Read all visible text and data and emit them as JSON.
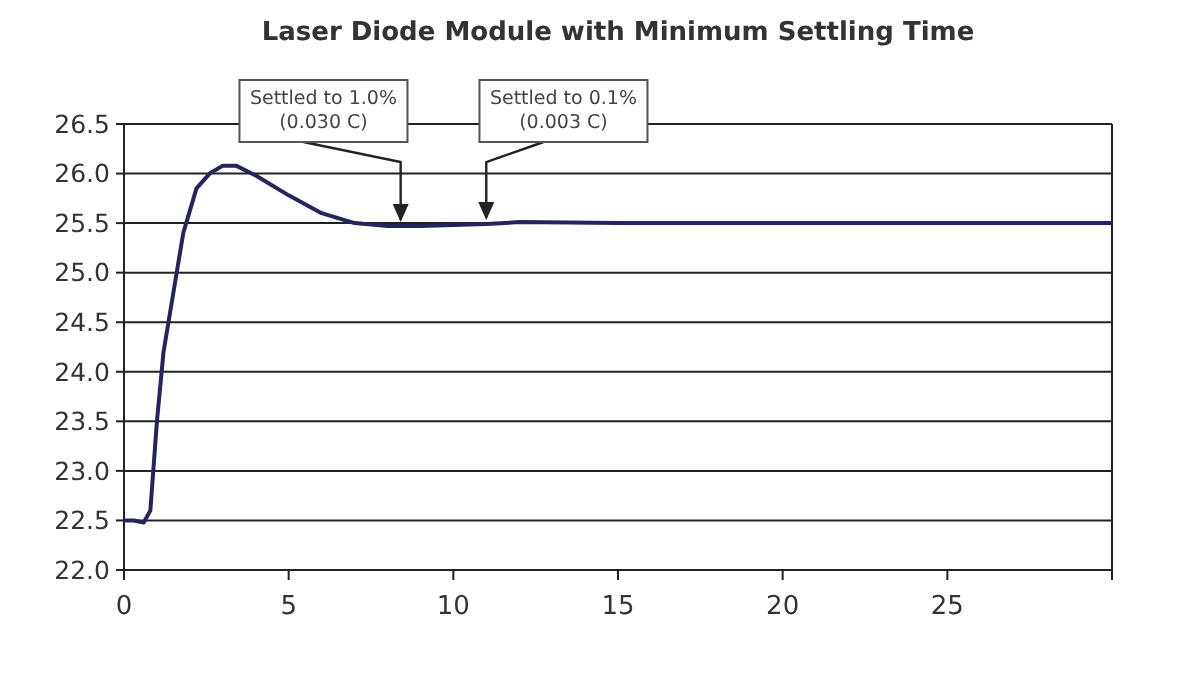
{
  "chart_data": {
    "type": "line",
    "title": "Laser Diode Module with Minimum Settling Time",
    "x": [
      0,
      0.3,
      0.6,
      0.8,
      1.0,
      1.2,
      1.5,
      1.8,
      2.2,
      2.6,
      3.0,
      3.4,
      4.0,
      5.0,
      6.0,
      7.0,
      8.0,
      9.0,
      10.0,
      11.0,
      12.0,
      15.0,
      20.0,
      25.0,
      30.0
    ],
    "series": [
      {
        "color": "#24245e",
        "values": [
          22.5,
          22.5,
          22.48,
          22.6,
          23.5,
          24.2,
          24.8,
          25.4,
          25.85,
          26.0,
          26.08,
          26.08,
          25.98,
          25.78,
          25.6,
          25.5,
          25.47,
          25.47,
          25.48,
          25.49,
          25.51,
          25.5,
          25.5,
          25.5,
          25.5
        ]
      }
    ],
    "xlim": [
      0,
      30
    ],
    "xticks": [
      0,
      5,
      10,
      15,
      20,
      25,
      {
        "value": 30,
        "label": null
      }
    ],
    "ylim": [
      22.0,
      26.5
    ],
    "yticks": [
      {
        "value": 22.0,
        "label": "22.0"
      },
      22.5,
      {
        "value": 23.0,
        "label": "23.0"
      },
      23.5,
      {
        "value": 24.0,
        "label": "24.0"
      },
      24.5,
      {
        "value": 25.0,
        "label": "25.0"
      },
      25.5,
      {
        "value": 26.0,
        "label": "26.0"
      },
      26.5
    ],
    "grid": "y",
    "marker": "none",
    "line_style": "solid",
    "annotations": [
      {
        "text": "Settled to 1.0%\n(0.030 C)",
        "x": 8.4,
        "y": 25.47
      },
      {
        "text": "Settled to 0.1%\n(0.003 C)",
        "x": 11.0,
        "y": 25.49
      }
    ]
  }
}
